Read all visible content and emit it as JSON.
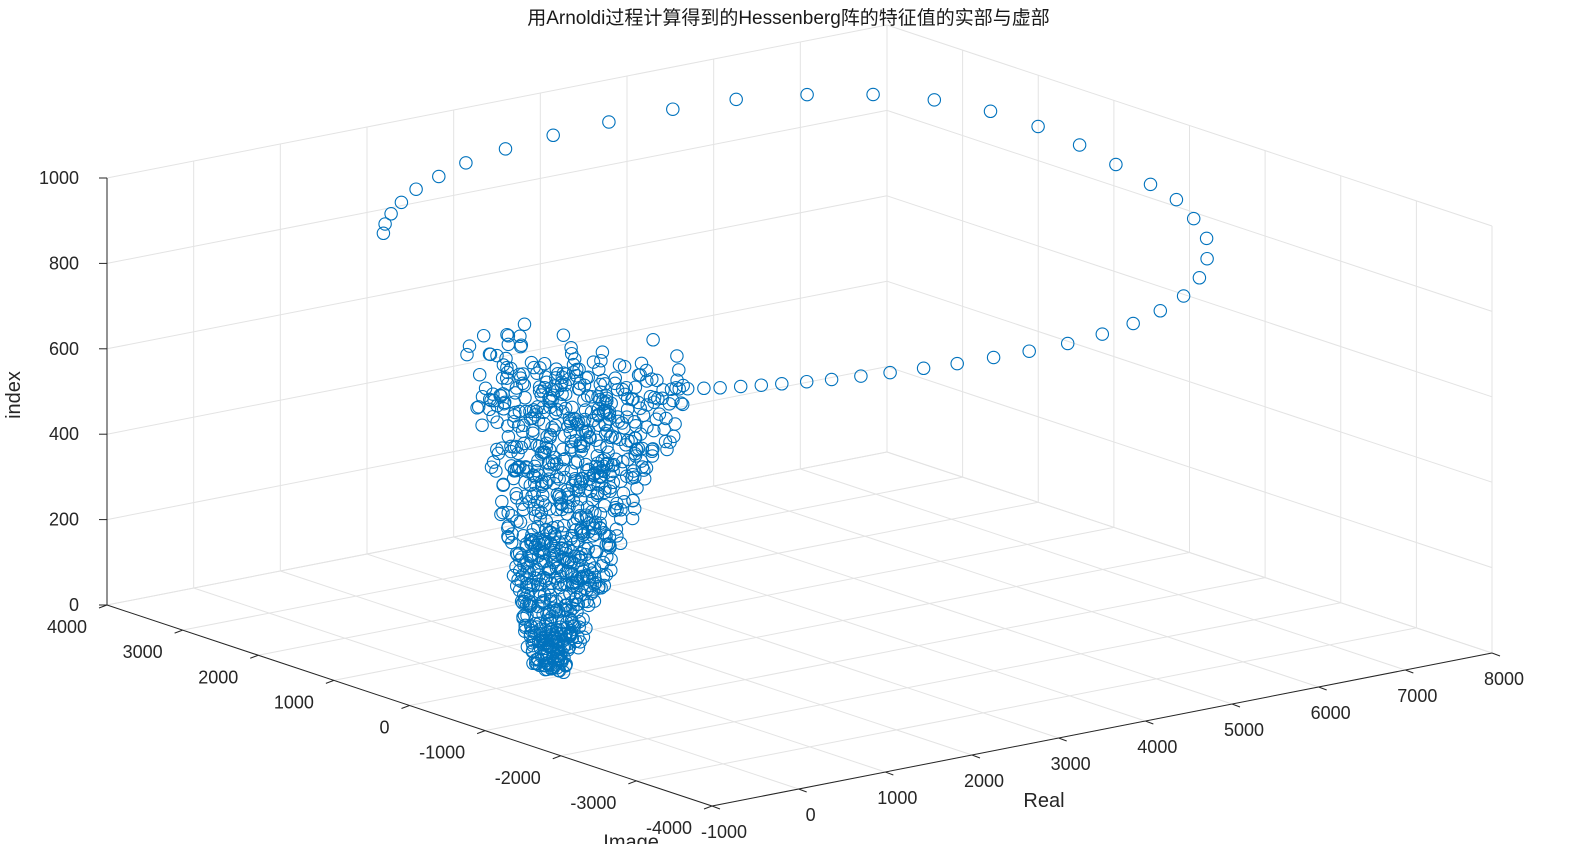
{
  "chart_data": {
    "type": "scatter3d",
    "title": "用Arnoldi过程计算得到的Hessenberg阵的特征值的实部与虚部",
    "xlabel": "Real",
    "ylabel": "Image",
    "zlabel": "index",
    "xlim": [
      -1000,
      8000
    ],
    "ylim": [
      -4000,
      4000
    ],
    "zlim": [
      0,
      1000
    ],
    "x_ticks": [
      "-1000",
      "0",
      "1000",
      "2000",
      "3000",
      "4000",
      "5000",
      "6000",
      "7000",
      "8000"
    ],
    "y_ticks": [
      "-4000",
      "-3000",
      "-2000",
      "-1000",
      "0",
      "1000",
      "2000",
      "3000",
      "4000"
    ],
    "z_ticks": [
      "0",
      "200",
      "400",
      "600",
      "800",
      "1000"
    ],
    "grid": true,
    "marker": "circle",
    "color": "#0072bd",
    "series": [
      {
        "points_description_note": "",
        "points": [
          [
            7550,
            0,
            880
          ],
          [
            7500,
            400,
            905
          ],
          [
            7430,
            800,
            930
          ],
          [
            7300,
            1200,
            955
          ],
          [
            7100,
            1600,
            975
          ],
          [
            6800,
            2000,
            990
          ],
          [
            6400,
            2350,
            998
          ],
          [
            5900,
            2650,
            1000
          ],
          [
            5300,
            2900,
            998
          ],
          [
            4700,
            3050,
            990
          ],
          [
            4050,
            3150,
            980
          ],
          [
            3450,
            3200,
            970
          ],
          [
            2900,
            3200,
            960
          ],
          [
            2400,
            3150,
            950
          ],
          [
            2000,
            3050,
            940
          ],
          [
            1650,
            2950,
            930
          ],
          [
            1350,
            2800,
            920
          ],
          [
            1100,
            2650,
            912
          ],
          [
            900,
            2500,
            905
          ],
          [
            750,
            2350,
            898
          ],
          [
            7500,
            -400,
            870
          ],
          [
            7350,
            -800,
            855
          ],
          [
            7150,
            -1200,
            840
          ],
          [
            6850,
            -1550,
            825
          ],
          [
            6500,
            -1850,
            812
          ],
          [
            6100,
            -2100,
            800
          ],
          [
            5700,
            -2250,
            790
          ],
          [
            5300,
            -2350,
            782
          ],
          [
            4900,
            -2400,
            776
          ],
          [
            4500,
            -2400,
            770
          ],
          [
            4100,
            -2350,
            765
          ],
          [
            3750,
            -2280,
            760
          ],
          [
            3400,
            -2200,
            755
          ],
          [
            3100,
            -2100,
            750
          ],
          [
            2800,
            -2000,
            746
          ],
          [
            2550,
            -1900,
            742
          ],
          [
            2300,
            -1800,
            738
          ],
          [
            2100,
            -1700,
            735
          ],
          [
            1900,
            -1600,
            732
          ],
          [
            1750,
            -1500,
            729
          ],
          [
            1600,
            -1400,
            726
          ],
          [
            1450,
            -1300,
            723
          ],
          [
            1350,
            -1200,
            720
          ],
          [
            1250,
            -1100,
            717
          ],
          [
            1150,
            -1000,
            714
          ],
          [
            1300,
            -900,
            780
          ],
          [
            1200,
            -700,
            810
          ]
        ]
      }
    ]
  }
}
